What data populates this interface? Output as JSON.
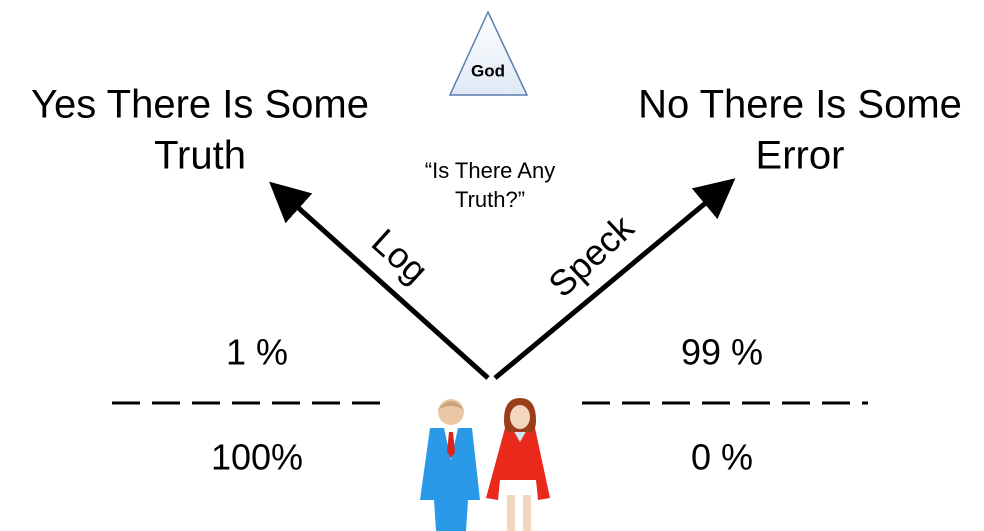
{
  "god_label": "God",
  "left_answer": {
    "lines": [
      "Yes There Is Some",
      "Truth"
    ]
  },
  "right_answer": {
    "lines": [
      "No There Is Some",
      "Error"
    ]
  },
  "question": {
    "lines": [
      "“Is There Any",
      "Truth?”"
    ]
  },
  "arrows": {
    "left": {
      "label": "Log"
    },
    "right": {
      "label": "Speck"
    }
  },
  "left_fraction": {
    "top": "1 %",
    "bottom": "100%"
  },
  "right_fraction": {
    "top": "99 %",
    "bottom": "0 %"
  }
}
